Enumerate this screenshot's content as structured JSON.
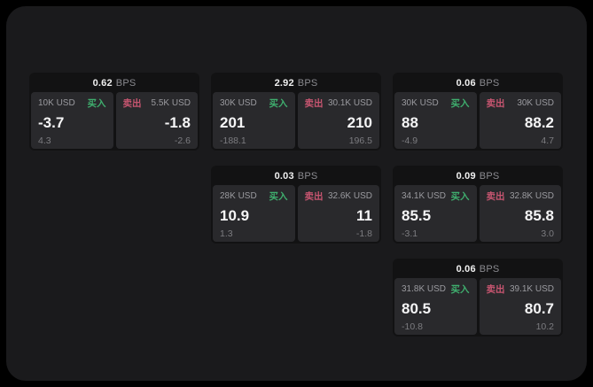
{
  "theme": {
    "page_background": "#000000",
    "window_background": "#1a1a1c",
    "card_background": "#121213",
    "panel_background": "#29292c",
    "buy_color": "#3fae6e",
    "sell_color": "#c75570",
    "value_color": "#f5f5f6",
    "muted_color": "#9a9a9f"
  },
  "labels": {
    "bps_unit": "BPS",
    "buy": "买入",
    "sell": "卖出"
  },
  "cards": [
    {
      "bps": "0.62",
      "grid": {
        "row": 1,
        "col": 1
      },
      "buy": {
        "amount": "10K USD",
        "side_label": "买入",
        "value": "-3.7",
        "delta": "4.3"
      },
      "sell": {
        "amount": "5.5K USD",
        "side_label": "卖出",
        "value": "-1.8",
        "delta": "-2.6"
      }
    },
    {
      "bps": "2.92",
      "grid": {
        "row": 1,
        "col": 2
      },
      "buy": {
        "amount": "30K USD",
        "side_label": "买入",
        "value": "201",
        "delta": "-188.1"
      },
      "sell": {
        "amount": "30.1K USD",
        "side_label": "卖出",
        "value": "210",
        "delta": "196.5"
      }
    },
    {
      "bps": "0.06",
      "grid": {
        "row": 1,
        "col": 3
      },
      "buy": {
        "amount": "30K USD",
        "side_label": "买入",
        "value": "88",
        "delta": "-4.9"
      },
      "sell": {
        "amount": "30K USD",
        "side_label": "卖出",
        "value": "88.2",
        "delta": "4.7"
      }
    },
    {
      "bps": "0.03",
      "grid": {
        "row": 2,
        "col": 2
      },
      "buy": {
        "amount": "28K USD",
        "side_label": "买入",
        "value": "10.9",
        "delta": "1.3"
      },
      "sell": {
        "amount": "32.6K USD",
        "side_label": "卖出",
        "value": "11",
        "delta": "-1.8"
      }
    },
    {
      "bps": "0.09",
      "grid": {
        "row": 2,
        "col": 3
      },
      "buy": {
        "amount": "34.1K USD",
        "side_label": "买入",
        "value": "85.5",
        "delta": "-3.1"
      },
      "sell": {
        "amount": "32.8K USD",
        "side_label": "卖出",
        "value": "85.8",
        "delta": "3.0"
      }
    },
    {
      "bps": "0.06",
      "grid": {
        "row": 3,
        "col": 3
      },
      "buy": {
        "amount": "31.8K USD",
        "side_label": "买入",
        "value": "80.5",
        "delta": "-10.8"
      },
      "sell": {
        "amount": "39.1K USD",
        "side_label": "卖出",
        "value": "80.7",
        "delta": "10.2"
      }
    }
  ]
}
